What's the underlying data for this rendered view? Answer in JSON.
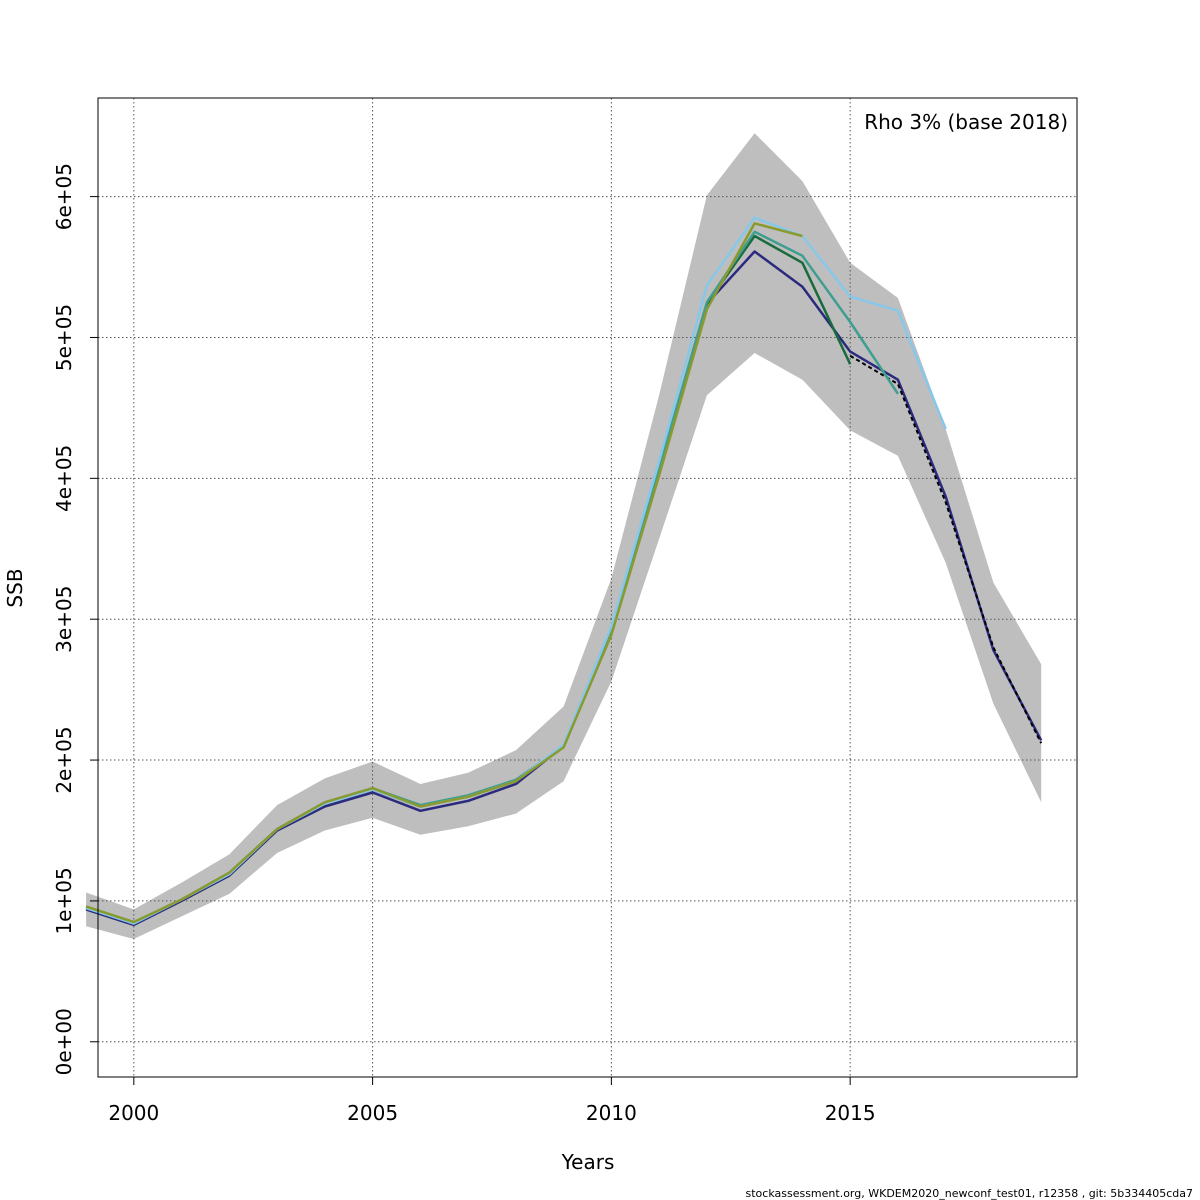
{
  "chart_data": {
    "type": "line",
    "title": "",
    "xlabel": "Years",
    "ylabel": "SSB",
    "annotation": "Rho 3% (base 2018)",
    "footer": "stockassessment.org, WKDEM2020_newconf_test01, r12358 , git: 5b334405cda7",
    "xlim": [
      1999.25,
      2019.75
    ],
    "ylim": [
      -25000,
      670000
    ],
    "x_ticks": [
      2000,
      2005,
      2010,
      2015
    ],
    "x_tick_labels": [
      "2000",
      "2005",
      "2010",
      "2015"
    ],
    "y_ticks": [
      0,
      100000,
      200000,
      300000,
      400000,
      500000,
      600000
    ],
    "y_tick_labels": [
      "0e+00",
      "1e+05",
      "2e+05",
      "3e+05",
      "4e+05",
      "5e+05",
      "6e+05"
    ],
    "grid": true,
    "confidence_band": {
      "x": [
        1999,
        2000,
        2001,
        2002,
        2003,
        2004,
        2005,
        2006,
        2007,
        2008,
        2009,
        2010,
        2011,
        2012,
        2013,
        2014,
        2015,
        2016,
        2017,
        2018,
        2019
      ],
      "lower": [
        82000,
        73000,
        89000,
        105000,
        134000,
        150000,
        159000,
        147000,
        153000,
        162000,
        185000,
        256000,
        357000,
        459000,
        489000,
        470000,
        434000,
        416000,
        340000,
        240000,
        170000
      ],
      "upper": [
        106000,
        94000,
        113000,
        133000,
        168000,
        187000,
        199000,
        183000,
        191000,
        207000,
        238000,
        329000,
        459000,
        601000,
        645000,
        611000,
        553000,
        528000,
        435000,
        326000,
        268000
      ],
      "color": "#bebebe"
    },
    "series": [
      {
        "color": "#2b2a7e",
        "dashed": false,
        "x": [
          1999,
          2000,
          2001,
          2002,
          2003,
          2004,
          2005,
          2006,
          2007,
          2008,
          2009,
          2010,
          2011,
          2012,
          2013,
          2014,
          2015,
          2016,
          2017,
          2018,
          2019
        ],
        "values": [
          94000,
          83000,
          100000,
          118000,
          150000,
          167000,
          177000,
          164000,
          171000,
          183000,
          210000,
          290000,
          405000,
          524000,
          561000,
          536000,
          490000,
          470000,
          387000,
          278000,
          214000
        ]
      },
      {
        "color": "#000000",
        "dashed": true,
        "x": [
          2015,
          2016,
          2017,
          2018,
          2019
        ],
        "values": [
          487000,
          467000,
          383000,
          280000,
          212000
        ]
      },
      {
        "color": "#1a6b3c",
        "dashed": false,
        "x": [
          1999,
          2000,
          2001,
          2002,
          2003,
          2004,
          2005,
          2006,
          2007,
          2008,
          2009,
          2010,
          2011,
          2012,
          2013,
          2014,
          2015
        ],
        "values": [
          95000,
          84000,
          101000,
          119000,
          151000,
          169000,
          179000,
          167000,
          174000,
          185000,
          210000,
          291000,
          405000,
          524000,
          572000,
          553000,
          481000
        ]
      },
      {
        "color": "#3e9e8f",
        "dashed": false,
        "x": [
          1999,
          2000,
          2001,
          2002,
          2003,
          2004,
          2005,
          2006,
          2007,
          2008,
          2009,
          2010,
          2011,
          2012,
          2013,
          2014,
          2015,
          2016
        ],
        "values": [
          96000,
          85000,
          101000,
          120000,
          151000,
          170000,
          180000,
          168000,
          175000,
          186000,
          210000,
          292000,
          407000,
          525000,
          575000,
          558000,
          511000,
          460000
        ]
      },
      {
        "color": "#87c8ea",
        "dashed": false,
        "x": [
          1999,
          2000,
          2001,
          2002,
          2003,
          2004,
          2005,
          2006,
          2007,
          2008,
          2009,
          2010,
          2011,
          2012,
          2013,
          2014,
          2015,
          2016,
          2017
        ],
        "values": [
          95000,
          84000,
          101000,
          119000,
          151000,
          169000,
          179000,
          167000,
          174000,
          185000,
          211000,
          295000,
          412000,
          537000,
          585000,
          572000,
          529000,
          519000,
          435000
        ]
      },
      {
        "color": "#8a9a2e",
        "dashed": false,
        "x": [
          1999,
          2000,
          2001,
          2002,
          2003,
          2004,
          2005,
          2006,
          2007,
          2008,
          2009,
          2010,
          2011,
          2012,
          2013,
          2014
        ],
        "values": [
          96000,
          85000,
          101000,
          120000,
          151000,
          170000,
          180000,
          167000,
          174000,
          185000,
          209000,
          289000,
          402000,
          520000,
          581000,
          572000
        ]
      }
    ]
  }
}
